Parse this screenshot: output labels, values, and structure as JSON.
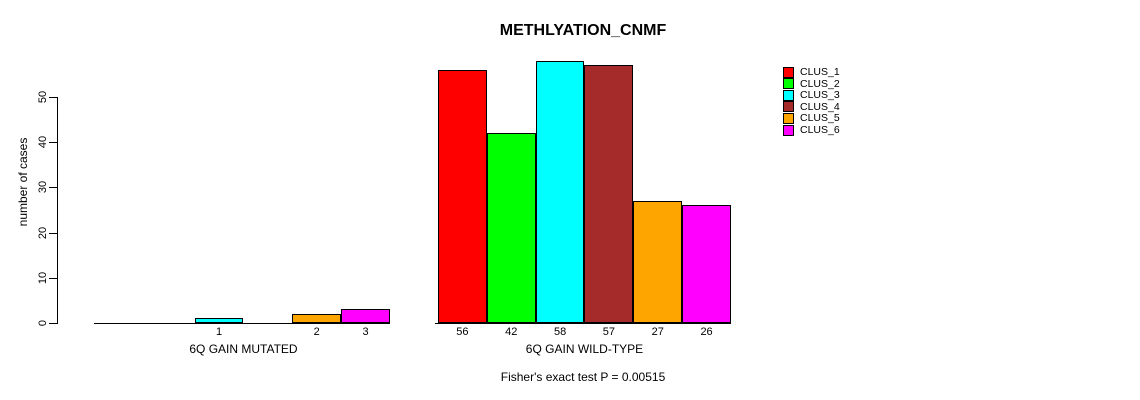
{
  "chart_data": {
    "type": "bar",
    "title": "METHLYATION_CNMF",
    "ylabel": "number of cases",
    "caption": "Fisher's exact test P = 0.00515",
    "ylim": [
      0,
      58
    ],
    "y_ticks": [
      0,
      10,
      20,
      30,
      40,
      50
    ],
    "grid": false,
    "legend_position": "right",
    "clusters": [
      {
        "label": "CLUS_1",
        "color": "#ff0000"
      },
      {
        "label": "CLUS_2",
        "color": "#00ff00"
      },
      {
        "label": "CLUS_3",
        "color": "#00ffff"
      },
      {
        "label": "CLUS_4",
        "color": "#a52a2a"
      },
      {
        "label": "CLUS_5",
        "color": "#ffa500"
      },
      {
        "label": "CLUS_6",
        "color": "#ff00ff"
      }
    ],
    "groups": [
      {
        "label": "6Q GAIN MUTATED",
        "values": [
          0,
          0,
          1,
          0,
          2,
          3
        ],
        "bar_labels": [
          "",
          "",
          "1",
          "",
          "2",
          "3"
        ]
      },
      {
        "label": "6Q GAIN WILD-TYPE",
        "values": [
          56,
          42,
          58,
          57,
          27,
          26
        ],
        "bar_labels": [
          "56",
          "42",
          "58",
          "57",
          "27",
          "26"
        ]
      }
    ]
  },
  "colors": {
    "background": "#ffffff",
    "axis": "#000000",
    "text": "#000000"
  }
}
